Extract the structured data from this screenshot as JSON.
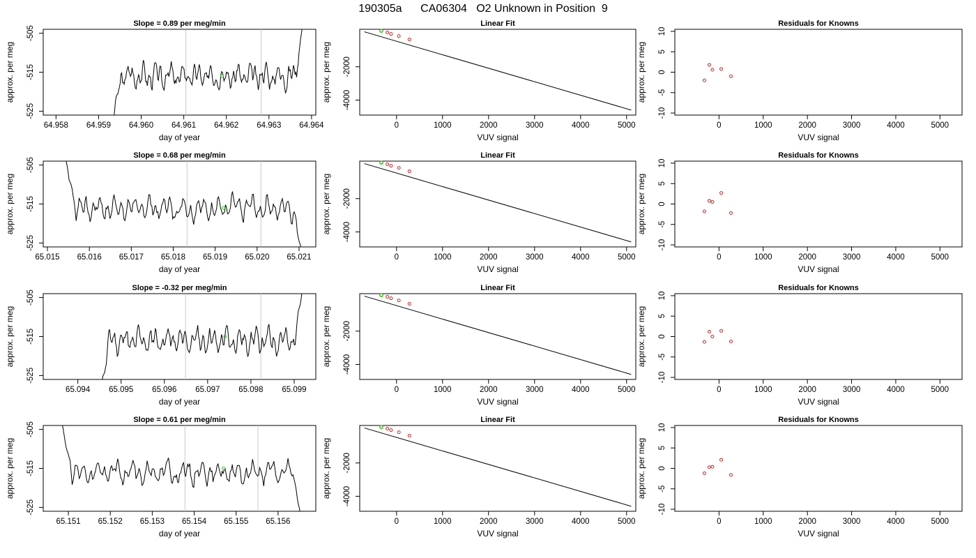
{
  "page_title": "190305a      CA06304   O2 Unknown in Position  9",
  "colors": {
    "trace": "#000000",
    "marker_green": "#22cc22",
    "point_red": "#cc2222",
    "vline": "#c8c8c8"
  },
  "chart_data": [
    {
      "type": "line",
      "row": 0,
      "title": "Slope =  0.89  per meg/min",
      "xlabel": "day of year",
      "ylabel": "approx. per meg",
      "xlim": [
        64.9577,
        64.9641
      ],
      "ylim": [
        -526,
        -504
      ],
      "xticks": [
        "64.958",
        "64.959",
        "64.960",
        "64.961",
        "64.962",
        "64.963",
        "64.964"
      ],
      "yticks": [
        "-525",
        "-515",
        "-505"
      ],
      "vlines": [
        64.96105,
        64.96282
      ],
      "marker": [
        64.9619,
        -516
      ],
      "start": 64.9593,
      "end": 64.9638,
      "seed": 3
    },
    {
      "type": "line",
      "row": 1,
      "title": "Slope =  0.68  per meg/min",
      "xlabel": "day of year",
      "ylabel": "approx. per meg",
      "xlim": [
        65.0149,
        65.0214
      ],
      "ylim": [
        -526,
        -504
      ],
      "xticks": [
        "65.015",
        "65.016",
        "65.017",
        "65.018",
        "65.019",
        "65.020",
        "65.021"
      ],
      "yticks": [
        "-525",
        "-515",
        "-505"
      ],
      "vlines": [
        65.01833,
        65.02009
      ],
      "marker": [
        65.0192,
        -516
      ],
      "start": 65.0154,
      "end": 65.0211,
      "seed": 7
    },
    {
      "type": "line",
      "row": 2,
      "title": "Slope =  -0.32  per meg/min",
      "xlabel": "day of year",
      "ylabel": "approx. per meg",
      "xlim": [
        65.0932,
        65.0995
      ],
      "ylim": [
        -526,
        -504
      ],
      "xticks": [
        "65.094",
        "65.095",
        "65.096",
        "65.097",
        "65.098",
        "65.099"
      ],
      "yticks": [
        "-525",
        "-515",
        "-505"
      ],
      "vlines": [
        65.09649,
        65.09823
      ],
      "marker": [
        65.0974,
        -515
      ],
      "start": 65.0945,
      "end": 65.0992,
      "seed": 11
    },
    {
      "type": "line",
      "row": 3,
      "title": "Slope =  0.61  per meg/min",
      "xlabel": "day of year",
      "ylabel": "approx. per meg",
      "xlim": [
        65.1504,
        65.1569
      ],
      "ylim": [
        -526,
        -504
      ],
      "xticks": [
        "65.151",
        "65.152",
        "65.153",
        "65.154",
        "65.155",
        "65.156"
      ],
      "yticks": [
        "-525",
        "-515",
        "-505"
      ],
      "vlines": [
        65.15378,
        65.15552
      ],
      "marker": [
        65.1547,
        -515
      ],
      "start": 65.1508,
      "end": 65.1566,
      "seed": 19
    },
    {
      "type": "scatter",
      "row": 0,
      "title": "Linear Fit",
      "xlabel": "VUV signal",
      "ylabel": "approx. per meg",
      "xlim": [
        -800,
        5200
      ],
      "ylim": [
        -4900,
        250
      ],
      "xticks": [
        0,
        1000,
        2000,
        3000,
        4000,
        5000
      ],
      "yticks": [
        -2000,
        -4000
      ],
      "line": [
        [
          -700,
          100
        ],
        [
          5100,
          -4600
        ]
      ],
      "points": [
        [
          -330,
          160
        ],
        [
          -200,
          60
        ],
        [
          -120,
          -30
        ],
        [
          50,
          -160
        ],
        [
          280,
          -360
        ]
      ],
      "green": [
        -330,
        160
      ]
    },
    {
      "type": "scatter",
      "row": 1,
      "title": "Linear Fit",
      "xlabel": "VUV signal",
      "ylabel": "approx. per meg",
      "xlim": [
        -800,
        5200
      ],
      "ylim": [
        -4900,
        250
      ],
      "xticks": [
        0,
        1000,
        2000,
        3000,
        4000,
        5000
      ],
      "yticks": [
        -2000,
        -4000
      ],
      "line": [
        [
          -700,
          100
        ],
        [
          5100,
          -4600
        ]
      ],
      "points": [
        [
          -330,
          160
        ],
        [
          -200,
          60
        ],
        [
          -120,
          -30
        ],
        [
          50,
          -160
        ],
        [
          280,
          -360
        ]
      ],
      "green": [
        -330,
        160
      ]
    },
    {
      "type": "scatter",
      "row": 2,
      "title": "Linear Fit",
      "xlabel": "VUV signal",
      "ylabel": "approx. per meg",
      "xlim": [
        -800,
        5200
      ],
      "ylim": [
        -4900,
        250
      ],
      "xticks": [
        0,
        1000,
        2000,
        3000,
        4000,
        5000
      ],
      "yticks": [
        -2000,
        -4000
      ],
      "line": [
        [
          -700,
          100
        ],
        [
          5100,
          -4600
        ]
      ],
      "points": [
        [
          -330,
          160
        ],
        [
          -200,
          60
        ],
        [
          -120,
          -30
        ],
        [
          50,
          -160
        ],
        [
          280,
          -360
        ]
      ],
      "green": [
        -330,
        160
      ]
    },
    {
      "type": "scatter",
      "row": 3,
      "title": "Linear Fit",
      "xlabel": "VUV signal",
      "ylabel": "approx. per meg",
      "xlim": [
        -800,
        5200
      ],
      "ylim": [
        -4900,
        250
      ],
      "xticks": [
        0,
        1000,
        2000,
        3000,
        4000,
        5000
      ],
      "yticks": [
        -2000,
        -4000
      ],
      "line": [
        [
          -700,
          100
        ],
        [
          5100,
          -4600
        ]
      ],
      "points": [
        [
          -330,
          160
        ],
        [
          -200,
          60
        ],
        [
          -120,
          -30
        ],
        [
          50,
          -160
        ],
        [
          280,
          -360
        ]
      ],
      "green": [
        -330,
        160
      ]
    },
    {
      "type": "scatter",
      "row": 0,
      "title": "Residuals for Knowns",
      "xlabel": "VUV signal",
      "ylabel": "approx. per meg",
      "xlim": [
        -1000,
        5500
      ],
      "ylim": [
        -10.5,
        10.5
      ],
      "xticks": [
        0,
        1000,
        2000,
        3000,
        4000,
        5000
      ],
      "yticks": [
        -10,
        -5,
        0,
        5,
        10
      ],
      "points": [
        [
          -330,
          -2.0
        ],
        [
          -220,
          1.8
        ],
        [
          -150,
          0.6
        ],
        [
          50,
          0.8
        ],
        [
          270,
          -1.0
        ]
      ]
    },
    {
      "type": "scatter",
      "row": 1,
      "title": "Residuals for Knowns",
      "xlabel": "VUV signal",
      "ylabel": "approx. per meg",
      "xlim": [
        -1000,
        5500
      ],
      "ylim": [
        -10.5,
        10.5
      ],
      "xticks": [
        0,
        1000,
        2000,
        3000,
        4000,
        5000
      ],
      "yticks": [
        -10,
        -5,
        0,
        5,
        10
      ],
      "points": [
        [
          -330,
          -1.8
        ],
        [
          -220,
          0.8
        ],
        [
          -150,
          0.5
        ],
        [
          50,
          2.7
        ],
        [
          270,
          -2.2
        ]
      ]
    },
    {
      "type": "scatter",
      "row": 2,
      "title": "Residuals for Knowns",
      "xlabel": "VUV signal",
      "ylabel": "approx. per meg",
      "xlim": [
        -1000,
        5500
      ],
      "ylim": [
        -10.5,
        10.5
      ],
      "xticks": [
        0,
        1000,
        2000,
        3000,
        4000,
        5000
      ],
      "yticks": [
        -10,
        -5,
        0,
        5,
        10
      ],
      "points": [
        [
          -330,
          -1.3
        ],
        [
          -220,
          1.2
        ],
        [
          -150,
          0.0
        ],
        [
          50,
          1.4
        ],
        [
          270,
          -1.2
        ]
      ]
    },
    {
      "type": "scatter",
      "row": 3,
      "title": "Residuals for Knowns",
      "xlabel": "VUV signal",
      "ylabel": "approx. per meg",
      "xlim": [
        -1000,
        5500
      ],
      "ylim": [
        -10.5,
        10.5
      ],
      "xticks": [
        0,
        1000,
        2000,
        3000,
        4000,
        5000
      ],
      "yticks": [
        -10,
        -5,
        0,
        5,
        10
      ],
      "points": [
        [
          -330,
          -1.2
        ],
        [
          -220,
          0.3
        ],
        [
          -150,
          0.4
        ],
        [
          50,
          2.1
        ],
        [
          270,
          -1.6
        ]
      ]
    }
  ]
}
